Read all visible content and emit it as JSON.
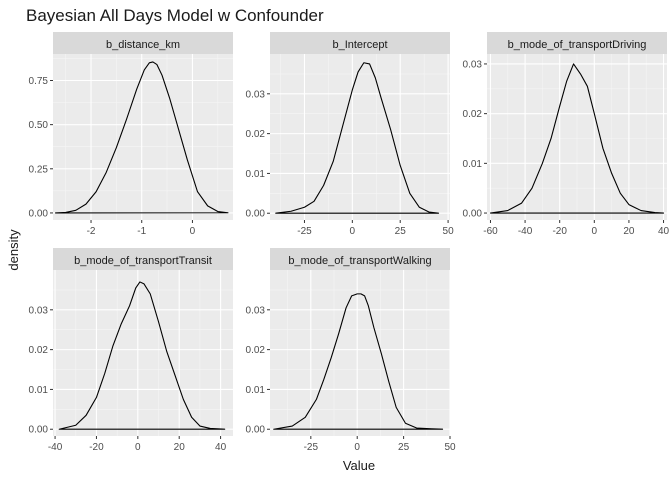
{
  "chart_data": {
    "type": "line",
    "title": "Bayesian All Days Model w Confounder",
    "xlabel": "Value",
    "ylabel": "density",
    "grid": true,
    "panels": [
      {
        "name": "b_distance_km",
        "xlim": [
          -2.75,
          0.8
        ],
        "ylim": [
          -0.04,
          0.9
        ],
        "xticks": [
          -2,
          -1,
          0
        ],
        "xtick_labels": [
          "-2",
          "-1",
          "0"
        ],
        "yticks": [
          0,
          0.25,
          0.5,
          0.75
        ],
        "ytick_labels": [
          "0.00",
          "0.25",
          "0.50",
          "0.75"
        ],
        "x": [
          -2.7,
          -2.5,
          -2.3,
          -2.1,
          -1.9,
          -1.7,
          -1.5,
          -1.3,
          -1.1,
          -0.95,
          -0.85,
          -0.78,
          -0.7,
          -0.6,
          -0.45,
          -0.3,
          -0.1,
          0.1,
          0.3,
          0.5,
          0.7
        ],
        "y": [
          0.0,
          0.003,
          0.015,
          0.05,
          0.12,
          0.23,
          0.37,
          0.53,
          0.7,
          0.81,
          0.85,
          0.855,
          0.84,
          0.78,
          0.65,
          0.5,
          0.3,
          0.12,
          0.04,
          0.008,
          0.001
        ]
      },
      {
        "name": "b_Intercept",
        "xlim": [
          -43,
          51
        ],
        "ylim": [
          -0.0017,
          0.04
        ],
        "xticks": [
          -25,
          0,
          25,
          50
        ],
        "xtick_labels": [
          "-25",
          "0",
          "25",
          "50"
        ],
        "yticks": [
          0,
          0.01,
          0.02,
          0.03
        ],
        "ytick_labels": [
          "0.00",
          "0.01",
          "0.02",
          "0.03"
        ],
        "x": [
          -40,
          -32,
          -25,
          -20,
          -15,
          -10,
          -5,
          0,
          3,
          6,
          9,
          12,
          15,
          20,
          25,
          30,
          35,
          40,
          45
        ],
        "y": [
          0.0,
          0.0005,
          0.0015,
          0.003,
          0.007,
          0.013,
          0.022,
          0.031,
          0.0355,
          0.0378,
          0.0375,
          0.034,
          0.029,
          0.021,
          0.012,
          0.005,
          0.0015,
          0.0003,
          0.0
        ]
      },
      {
        "name": "b_mode_of_transportDriving",
        "xlim": [
          -62,
          42
        ],
        "ylim": [
          -0.0014,
          0.032
        ],
        "xticks": [
          -60,
          -40,
          -20,
          0,
          20,
          40
        ],
        "xtick_labels": [
          "-60",
          "-40",
          "-20",
          "0",
          "20",
          "40"
        ],
        "yticks": [
          0,
          0.01,
          0.02,
          0.03
        ],
        "ytick_labels": [
          "0.00",
          "0.01",
          "0.02",
          "0.03"
        ],
        "x": [
          -60,
          -50,
          -42,
          -36,
          -30,
          -25,
          -20,
          -16,
          -12,
          -8,
          -4,
          0,
          5,
          10,
          15,
          20,
          27,
          35,
          40
        ],
        "y": [
          0.0,
          0.0005,
          0.002,
          0.005,
          0.01,
          0.015,
          0.0215,
          0.0265,
          0.03,
          0.028,
          0.0255,
          0.02,
          0.013,
          0.008,
          0.004,
          0.0017,
          0.0005,
          0.0001,
          0.0
        ]
      },
      {
        "name": "b_mode_of_transportTransit",
        "xlim": [
          -41,
          46
        ],
        "ylim": [
          -0.0017,
          0.04
        ],
        "xticks": [
          -40,
          -20,
          0,
          20,
          40
        ],
        "xtick_labels": [
          "-40",
          "-20",
          "0",
          "20",
          "40"
        ],
        "yticks": [
          0,
          0.01,
          0.02,
          0.03
        ],
        "ytick_labels": [
          "0.00",
          "0.01",
          "0.02",
          "0.03"
        ],
        "x": [
          -38,
          -30,
          -25,
          -20,
          -16,
          -12,
          -8,
          -4,
          -1,
          1,
          3,
          6,
          10,
          14,
          18,
          22,
          26,
          30,
          35,
          42
        ],
        "y": [
          0.0,
          0.001,
          0.0035,
          0.008,
          0.014,
          0.021,
          0.0265,
          0.031,
          0.0355,
          0.037,
          0.0365,
          0.034,
          0.027,
          0.0195,
          0.0135,
          0.0075,
          0.003,
          0.0008,
          0.0002,
          0.0
        ]
      },
      {
        "name": "b_mode_of_transportWalking",
        "xlim": [
          -47,
          50
        ],
        "ylim": [
          -0.0017,
          0.04
        ],
        "xticks": [
          -25,
          0,
          25,
          50
        ],
        "xtick_labels": [
          "-25",
          "0",
          "25",
          "50"
        ],
        "yticks": [
          0,
          0.01,
          0.02,
          0.03
        ],
        "ytick_labels": [
          "0.00",
          "0.01",
          "0.02",
          "0.03"
        ],
        "x": [
          -45,
          -35,
          -28,
          -22,
          -18,
          -14,
          -10,
          -6,
          -3,
          0,
          2,
          4,
          6,
          9,
          13,
          17,
          21,
          26,
          32,
          40,
          46
        ],
        "y": [
          0.0,
          0.0008,
          0.003,
          0.0075,
          0.0125,
          0.018,
          0.024,
          0.0305,
          0.0335,
          0.034,
          0.034,
          0.0335,
          0.031,
          0.0255,
          0.019,
          0.012,
          0.0055,
          0.0015,
          0.0003,
          0.0001,
          0.0
        ]
      }
    ]
  },
  "colors": {
    "panel_bg": "#ebebeb",
    "strip_bg": "#d9d9d9",
    "grid_major": "#ffffff",
    "grid_minor": "#f5f5f5",
    "line": "#000000",
    "text": "#1a1a1a",
    "tick_text": "#4d4d4d"
  }
}
